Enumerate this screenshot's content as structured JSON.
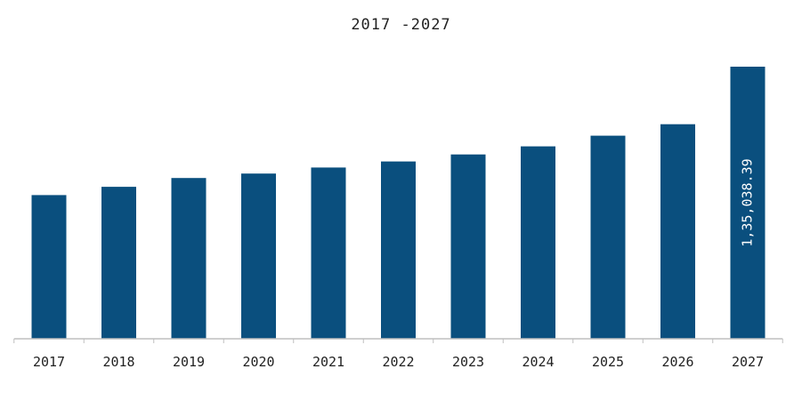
{
  "chart_data": {
    "type": "bar",
    "title": "2017 -2027",
    "categories": [
      "2017",
      "2018",
      "2019",
      "2020",
      "2021",
      "2022",
      "2023",
      "2024",
      "2025",
      "2026",
      "2027"
    ],
    "values": [
      71300,
      75400,
      79800,
      82000,
      85000,
      88000,
      91500,
      95500,
      100800,
      106500,
      135038.39
    ],
    "data_labels": [
      {
        "index": 10,
        "text": "1,35,038.39"
      }
    ],
    "xlabel": "",
    "ylabel": "",
    "bar_color": "#0a4f7e",
    "axis_color": "#bfbfbf",
    "grid": false
  }
}
